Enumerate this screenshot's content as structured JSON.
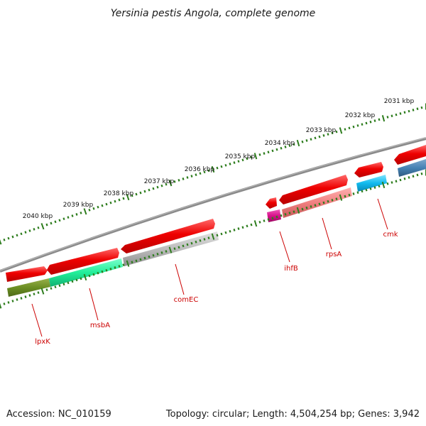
{
  "title": "Yersinia pestis Angola, complete genome",
  "footer": {
    "accession": "Accession: NC_010159",
    "summary": "Topology: circular; Length: 4,504,254 bp; Genes: 3,942"
  },
  "ruler": {
    "tick_color": "#2e7d1e",
    "labels": [
      "2031 kbp",
      "2032 kbp",
      "2033 kbp",
      "2034 kbp",
      "2035 kbp",
      "2036 kbp",
      "2037 kbp",
      "2038 kbp",
      "2039 kbp",
      "2040 kbp"
    ]
  },
  "backbone_color": "#7a7a7a",
  "genes": [
    {
      "label": "lpxK",
      "color": "#6b8e23"
    },
    {
      "label": "msbA",
      "color": "#22ee99"
    },
    {
      "label": "comEC",
      "color": "#b8b8b8"
    },
    {
      "label": "ihfB",
      "color": "#d6108a"
    },
    {
      "label": "rpsA",
      "color": "#f08080"
    },
    {
      "label": "cmk",
      "color": "#11bbee"
    }
  ],
  "cds_color": "#ee1111",
  "label_color": "#cc0000"
}
